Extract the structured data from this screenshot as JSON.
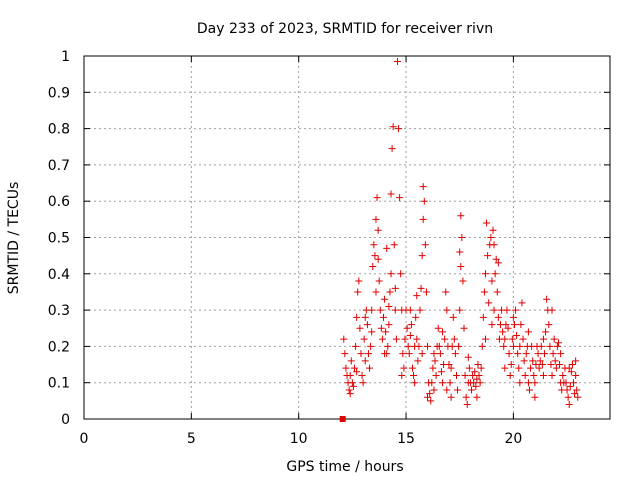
{
  "chart_data": {
    "type": "scatter",
    "title": "Day 233 of 2023, SRMTID for receiver rivn",
    "xlabel": "GPS time / hours",
    "ylabel": "SRMTID / TECUs",
    "xlim": [
      0,
      24.5
    ],
    "ylim": [
      0,
      1
    ],
    "xticks": [
      0,
      5,
      10,
      15,
      20
    ],
    "yticks": [
      0,
      0.1,
      0.2,
      0.3,
      0.4,
      0.5,
      0.6,
      0.7,
      0.8,
      0.9,
      1
    ],
    "xtick_labels": [
      "0",
      "5",
      "10",
      "15",
      "20"
    ],
    "ytick_labels": [
      "0",
      "0.1",
      "0.2",
      "0.3",
      "0.4",
      "0.5",
      "0.6",
      "0.7",
      "0.8",
      "0.9",
      "1"
    ],
    "grid": true,
    "marker": "plus",
    "color": "#e00000",
    "series": [
      {
        "name": "SRMTID",
        "points": [
          [
            12.05,
            0.0
          ],
          [
            12.1,
            0.22
          ],
          [
            12.15,
            0.18
          ],
          [
            12.2,
            0.14
          ],
          [
            12.25,
            0.12
          ],
          [
            12.3,
            0.1
          ],
          [
            12.35,
            0.08
          ],
          [
            12.4,
            0.12
          ],
          [
            12.45,
            0.16
          ],
          [
            12.5,
            0.1
          ],
          [
            12.55,
            0.09
          ],
          [
            12.6,
            0.14
          ],
          [
            12.65,
            0.2
          ],
          [
            12.7,
            0.28
          ],
          [
            12.75,
            0.35
          ],
          [
            12.8,
            0.38
          ],
          [
            12.85,
            0.25
          ],
          [
            12.9,
            0.18
          ],
          [
            12.95,
            0.12
          ],
          [
            13.0,
            0.1
          ],
          [
            13.05,
            0.22
          ],
          [
            13.1,
            0.28
          ],
          [
            13.15,
            0.3
          ],
          [
            13.2,
            0.26
          ],
          [
            13.25,
            0.18
          ],
          [
            13.3,
            0.14
          ],
          [
            13.35,
            0.2
          ],
          [
            13.4,
            0.3
          ],
          [
            13.45,
            0.42
          ],
          [
            13.5,
            0.48
          ],
          [
            13.55,
            0.45
          ],
          [
            13.6,
            0.55
          ],
          [
            13.65,
            0.61
          ],
          [
            13.7,
            0.52
          ],
          [
            13.75,
            0.38
          ],
          [
            13.8,
            0.3
          ],
          [
            13.85,
            0.25
          ],
          [
            13.9,
            0.22
          ],
          [
            13.95,
            0.28
          ],
          [
            14.0,
            0.33
          ],
          [
            14.05,
            0.24
          ],
          [
            14.1,
            0.18
          ],
          [
            14.15,
            0.2
          ],
          [
            14.2,
            0.26
          ],
          [
            14.25,
            0.35
          ],
          [
            14.3,
            0.62
          ],
          [
            14.35,
            0.745
          ],
          [
            14.4,
            0.805
          ],
          [
            14.45,
            0.48
          ],
          [
            14.5,
            0.3
          ],
          [
            14.55,
            0.22
          ],
          [
            14.6,
            0.985
          ],
          [
            14.65,
            0.8
          ],
          [
            14.7,
            0.61
          ],
          [
            14.75,
            0.4
          ],
          [
            14.8,
            0.3
          ],
          [
            14.85,
            0.18
          ],
          [
            14.9,
            0.14
          ],
          [
            14.95,
            0.22
          ],
          [
            15.0,
            0.3
          ],
          [
            15.05,
            0.25
          ],
          [
            15.1,
            0.2
          ],
          [
            15.15,
            0.18
          ],
          [
            15.2,
            0.23
          ],
          [
            15.25,
            0.26
          ],
          [
            15.3,
            0.14
          ],
          [
            15.35,
            0.12
          ],
          [
            15.4,
            0.2
          ],
          [
            15.45,
            0.28
          ],
          [
            15.5,
            0.22
          ],
          [
            15.55,
            0.16
          ],
          [
            15.6,
            0.2
          ],
          [
            15.65,
            0.3
          ],
          [
            15.7,
            0.36
          ],
          [
            15.75,
            0.45
          ],
          [
            15.8,
            0.64
          ],
          [
            15.85,
            0.6
          ],
          [
            15.9,
            0.48
          ],
          [
            15.95,
            0.35
          ],
          [
            16.0,
            0.2
          ],
          [
            16.05,
            0.1
          ],
          [
            16.1,
            0.07
          ],
          [
            16.15,
            0.05
          ],
          [
            16.2,
            0.1
          ],
          [
            16.25,
            0.14
          ],
          [
            16.3,
            0.18
          ],
          [
            16.35,
            0.16
          ],
          [
            16.4,
            0.12
          ],
          [
            16.45,
            0.2
          ],
          [
            16.5,
            0.25
          ],
          [
            16.55,
            0.2
          ],
          [
            16.6,
            0.18
          ],
          [
            16.65,
            0.13
          ],
          [
            16.7,
            0.1
          ],
          [
            16.75,
            0.15
          ],
          [
            16.8,
            0.22
          ],
          [
            16.85,
            0.35
          ],
          [
            16.9,
            0.3
          ],
          [
            16.95,
            0.2
          ],
          [
            17.0,
            0.15
          ],
          [
            17.05,
            0.1
          ],
          [
            17.1,
            0.14
          ],
          [
            17.15,
            0.2
          ],
          [
            17.2,
            0.28
          ],
          [
            17.25,
            0.22
          ],
          [
            17.3,
            0.18
          ],
          [
            17.35,
            0.12
          ],
          [
            17.4,
            0.08
          ],
          [
            17.45,
            0.2
          ],
          [
            17.5,
            0.46
          ],
          [
            17.55,
            0.56
          ],
          [
            17.6,
            0.5
          ],
          [
            17.65,
            0.38
          ],
          [
            17.7,
            0.25
          ],
          [
            17.75,
            0.12
          ],
          [
            17.8,
            0.06
          ],
          [
            17.85,
            0.04
          ],
          [
            17.9,
            0.1
          ],
          [
            17.95,
            0.14
          ],
          [
            18.0,
            0.1
          ],
          [
            18.05,
            0.08
          ],
          [
            18.1,
            0.12
          ],
          [
            18.15,
            0.1
          ],
          [
            18.2,
            0.13
          ],
          [
            18.25,
            0.09
          ],
          [
            18.3,
            0.11
          ],
          [
            18.35,
            0.15
          ],
          [
            18.4,
            0.12
          ],
          [
            18.45,
            0.1
          ],
          [
            18.5,
            0.14
          ],
          [
            18.55,
            0.2
          ],
          [
            18.6,
            0.28
          ],
          [
            18.65,
            0.35
          ],
          [
            18.7,
            0.4
          ],
          [
            18.75,
            0.54
          ],
          [
            18.8,
            0.45
          ],
          [
            18.85,
            0.32
          ],
          [
            18.9,
            0.48
          ],
          [
            18.95,
            0.5
          ],
          [
            19.0,
            0.38
          ],
          [
            19.05,
            0.52
          ],
          [
            19.1,
            0.48
          ],
          [
            19.15,
            0.4
          ],
          [
            19.2,
            0.44
          ],
          [
            19.25,
            0.35
          ],
          [
            19.3,
            0.28
          ],
          [
            19.35,
            0.22
          ],
          [
            19.4,
            0.26
          ],
          [
            19.45,
            0.3
          ],
          [
            19.5,
            0.24
          ],
          [
            19.55,
            0.2
          ],
          [
            19.6,
            0.22
          ],
          [
            19.65,
            0.26
          ],
          [
            19.7,
            0.3
          ],
          [
            19.75,
            0.25
          ],
          [
            19.8,
            0.18
          ],
          [
            19.85,
            0.12
          ],
          [
            19.9,
            0.15
          ],
          [
            19.95,
            0.22
          ],
          [
            20.0,
            0.2
          ],
          [
            20.05,
            0.26
          ],
          [
            20.1,
            0.3
          ],
          [
            20.15,
            0.23
          ],
          [
            20.2,
            0.18
          ],
          [
            20.25,
            0.14
          ],
          [
            20.3,
            0.2
          ],
          [
            20.35,
            0.26
          ],
          [
            20.4,
            0.32
          ],
          [
            20.45,
            0.22
          ],
          [
            20.5,
            0.16
          ],
          [
            20.55,
            0.12
          ],
          [
            20.6,
            0.18
          ],
          [
            20.65,
            0.2
          ],
          [
            20.7,
            0.1
          ],
          [
            20.75,
            0.08
          ],
          [
            20.8,
            0.14
          ],
          [
            20.85,
            0.2
          ],
          [
            20.9,
            0.16
          ],
          [
            20.95,
            0.12
          ],
          [
            21.0,
            0.1
          ],
          [
            21.05,
            0.15
          ],
          [
            21.1,
            0.2
          ],
          [
            21.15,
            0.18
          ],
          [
            21.2,
            0.14
          ],
          [
            21.25,
            0.16
          ],
          [
            21.3,
            0.2
          ],
          [
            21.35,
            0.15
          ],
          [
            21.4,
            0.12
          ],
          [
            21.45,
            0.18
          ],
          [
            21.5,
            0.24
          ],
          [
            21.55,
            0.33
          ],
          [
            21.6,
            0.3
          ],
          [
            21.65,
            0.26
          ],
          [
            21.7,
            0.2
          ],
          [
            21.75,
            0.15
          ],
          [
            21.8,
            0.12
          ],
          [
            21.85,
            0.18
          ],
          [
            21.9,
            0.22
          ],
          [
            21.95,
            0.16
          ],
          [
            22.0,
            0.14
          ],
          [
            22.05,
            0.2
          ],
          [
            22.1,
            0.21
          ],
          [
            22.15,
            0.15
          ],
          [
            22.2,
            0.1
          ],
          [
            22.25,
            0.08
          ],
          [
            22.3,
            0.12
          ],
          [
            22.35,
            0.1
          ],
          [
            22.4,
            0.14
          ],
          [
            22.45,
            0.1
          ],
          [
            22.5,
            0.08
          ],
          [
            22.55,
            0.06
          ],
          [
            22.6,
            0.04
          ],
          [
            22.65,
            0.09
          ],
          [
            22.7,
            0.13
          ],
          [
            22.75,
            0.15
          ],
          [
            22.8,
            0.1
          ],
          [
            22.85,
            0.07
          ],
          [
            22.9,
            0.12
          ],
          [
            22.95,
            0.08
          ],
          [
            23.0,
            0.06
          ],
          [
            12.4,
            0.07
          ],
          [
            12.7,
            0.13
          ],
          [
            13.1,
            0.16
          ],
          [
            13.4,
            0.24
          ],
          [
            13.7,
            0.44
          ],
          [
            14.0,
            0.18
          ],
          [
            14.2,
            0.31
          ],
          [
            14.5,
            0.36
          ],
          [
            14.8,
            0.12
          ],
          [
            15.2,
            0.3
          ],
          [
            15.5,
            0.34
          ],
          [
            15.75,
            0.18
          ],
          [
            16.0,
            0.06
          ],
          [
            16.3,
            0.08
          ],
          [
            16.7,
            0.24
          ],
          [
            17.1,
            0.06
          ],
          [
            17.5,
            0.3
          ],
          [
            17.9,
            0.17
          ],
          [
            18.3,
            0.06
          ],
          [
            18.7,
            0.22
          ],
          [
            19.1,
            0.3
          ],
          [
            19.3,
            0.43
          ],
          [
            19.6,
            0.14
          ],
          [
            20.0,
            0.28
          ],
          [
            20.3,
            0.1
          ],
          [
            20.7,
            0.24
          ],
          [
            21.0,
            0.06
          ],
          [
            21.4,
            0.22
          ],
          [
            21.8,
            0.3
          ],
          [
            22.2,
            0.18
          ],
          [
            22.6,
            0.14
          ],
          [
            22.9,
            0.16
          ],
          [
            13.6,
            0.35
          ],
          [
            14.3,
            0.4
          ],
          [
            15.8,
            0.55
          ],
          [
            17.55,
            0.42
          ],
          [
            19.0,
            0.26
          ],
          [
            14.1,
            0.47
          ],
          [
            15.4,
            0.1
          ],
          [
            16.9,
            0.08
          ]
        ]
      }
    ]
  }
}
